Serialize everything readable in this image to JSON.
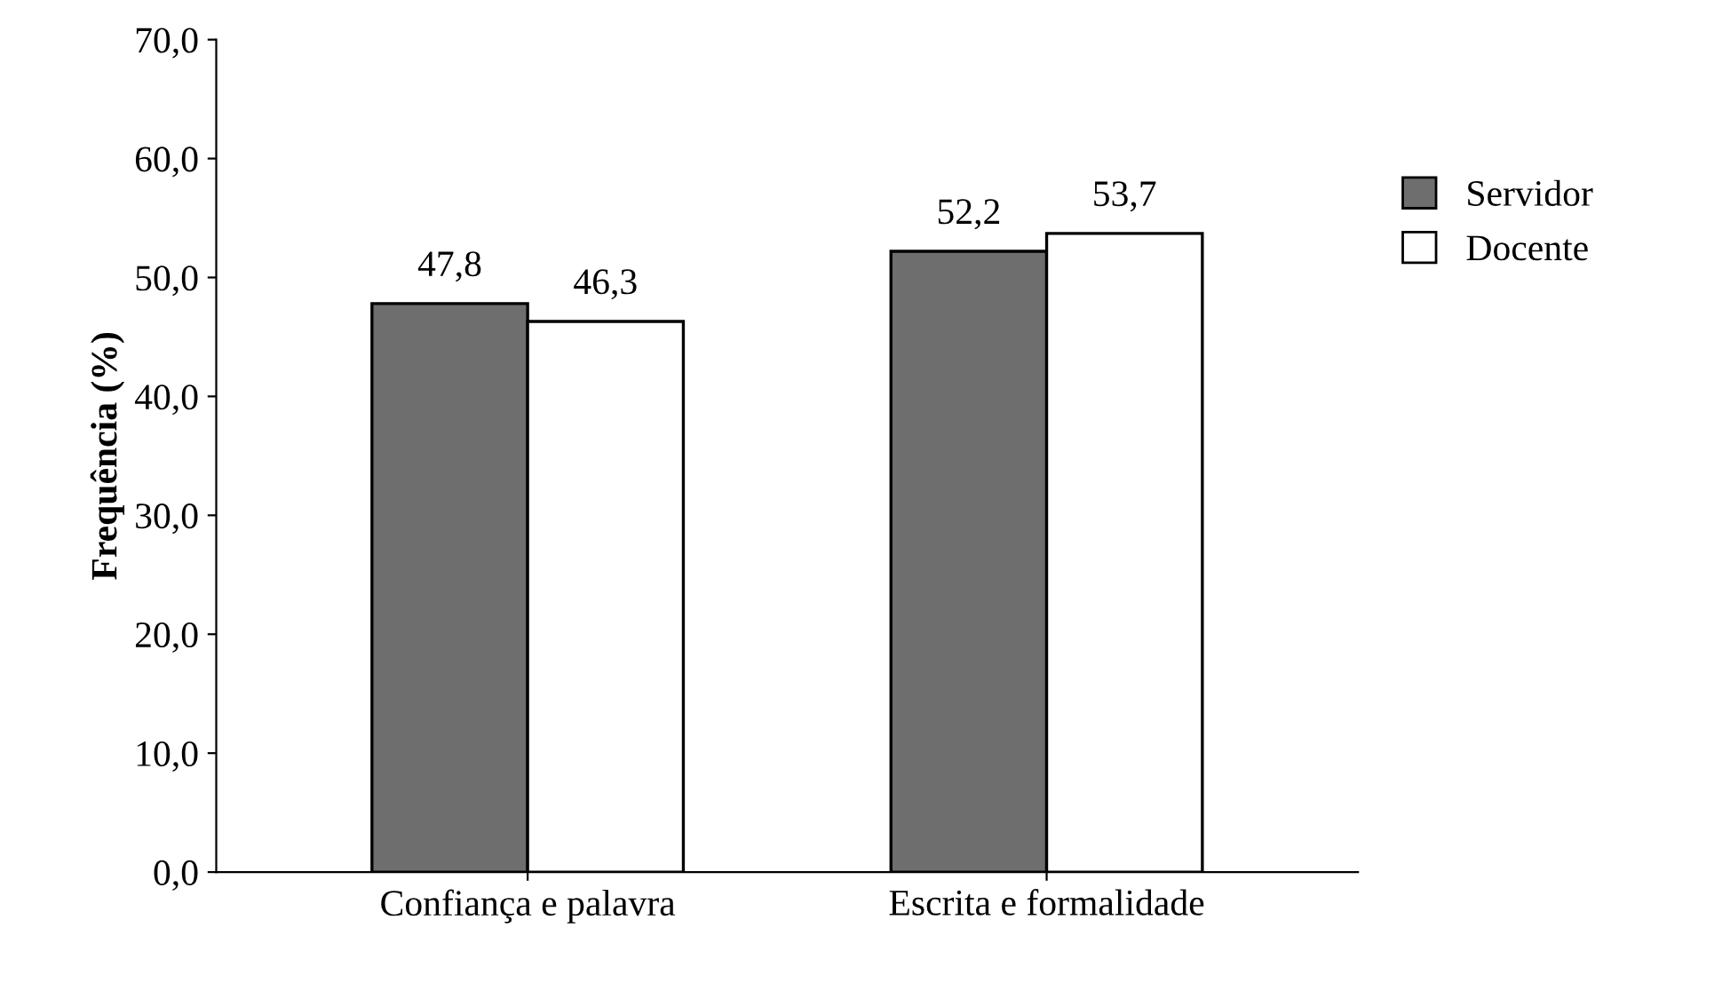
{
  "chart_data": {
    "type": "bar",
    "ylabel": "Frequência (%)",
    "categories": [
      "Confiança e palavra",
      "Escrita e formalidade"
    ],
    "series": [
      {
        "name": "Servidor",
        "color": "#6e6e6e",
        "values": [
          47.8,
          52.2
        ],
        "value_labels": [
          "47,8",
          "52,2"
        ]
      },
      {
        "name": "Docente",
        "color": "#ffffff",
        "values": [
          46.3,
          53.7
        ],
        "value_labels": [
          "46,3",
          "53,7"
        ]
      }
    ],
    "ylim": [
      0,
      70
    ],
    "yticks": [
      {
        "value": 0,
        "label": "0,0"
      },
      {
        "value": 10,
        "label": "10,0"
      },
      {
        "value": 20,
        "label": "20,0"
      },
      {
        "value": 30,
        "label": "30,0"
      },
      {
        "value": 40,
        "label": "40,0"
      },
      {
        "value": 50,
        "label": "50,0"
      },
      {
        "value": 60,
        "label": "60,0"
      },
      {
        "value": 70,
        "label": "70,0"
      }
    ],
    "grid": false,
    "legend": "right"
  }
}
